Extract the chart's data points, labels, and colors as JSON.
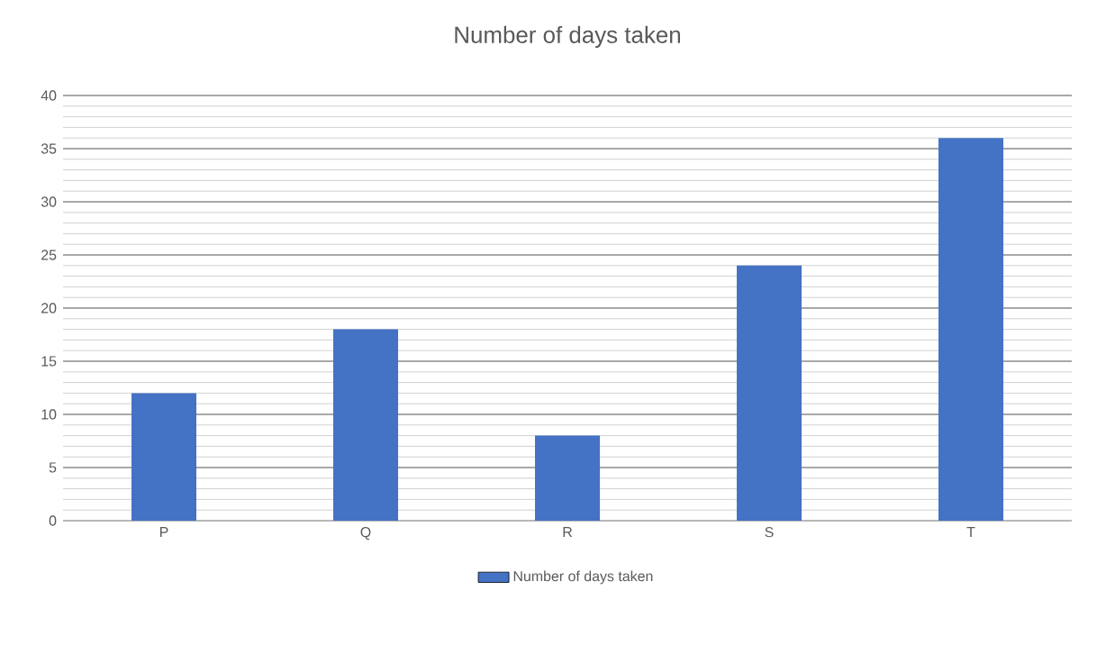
{
  "chart_data": {
    "type": "bar",
    "title": "Number of days taken",
    "categories": [
      "P",
      "Q",
      "R",
      "S",
      "T"
    ],
    "series": [
      {
        "name": "Number of days taken",
        "color": "#4472c4",
        "values": [
          12,
          18,
          8,
          24,
          36
        ]
      }
    ],
    "ylim": [
      0,
      40
    ],
    "yticks": [
      0,
      5,
      10,
      15,
      20,
      25,
      30,
      35,
      40
    ],
    "grid": "y",
    "legend": "bottom"
  }
}
